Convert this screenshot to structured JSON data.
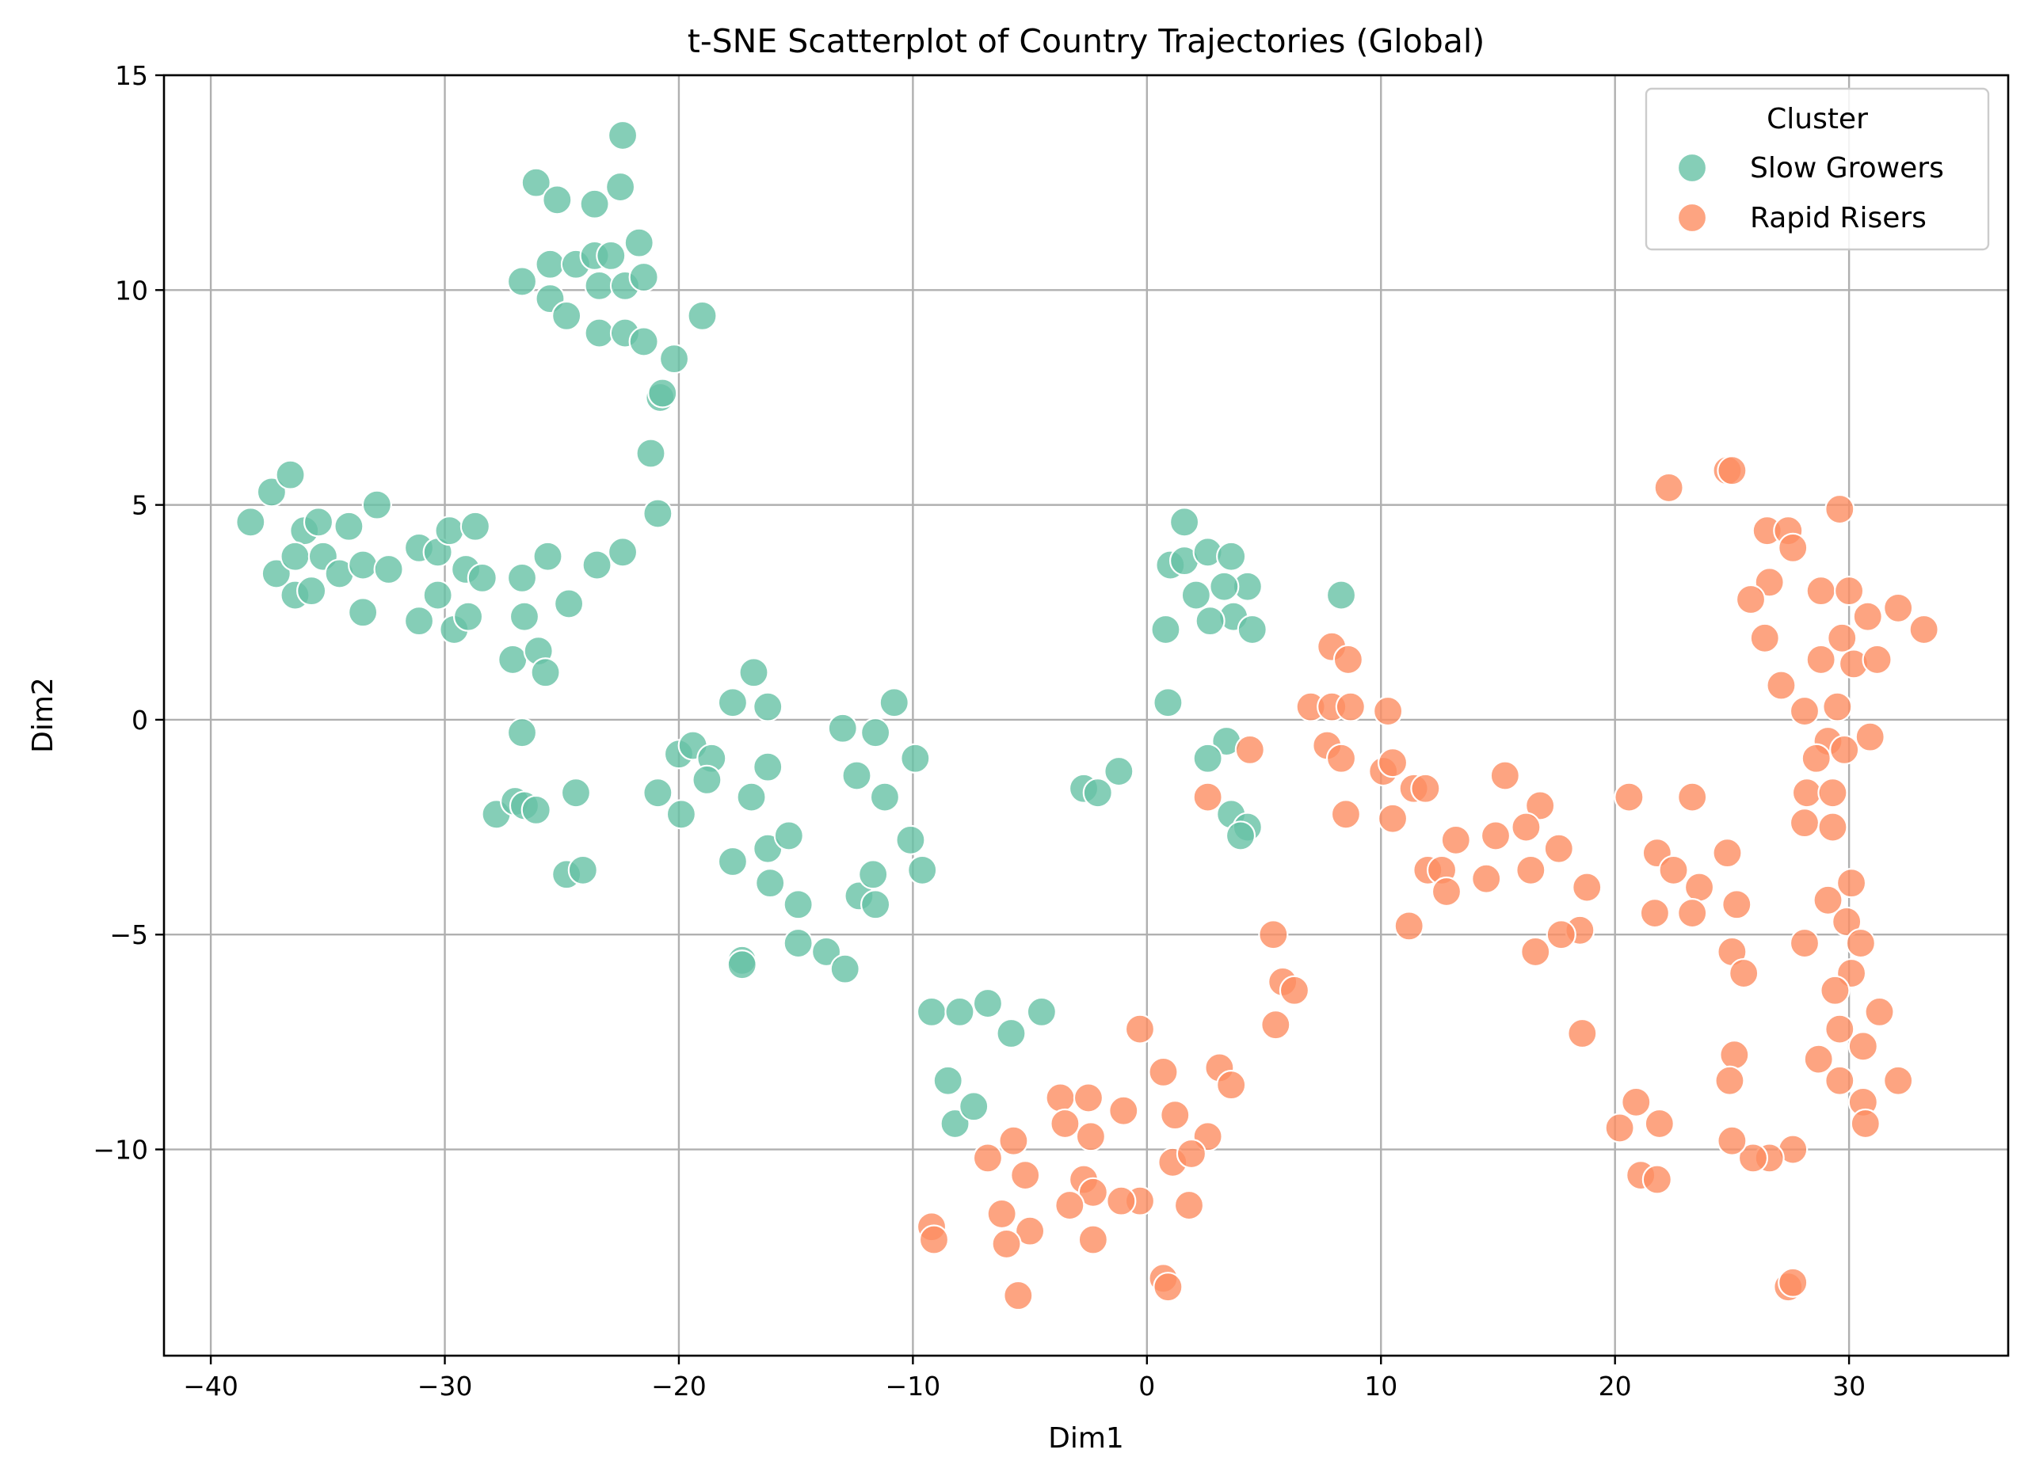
{
  "chart_data": {
    "type": "scatter",
    "title": "t-SNE Scatterplot of Country Trajectories (Global)",
    "xlabel": "Dim1",
    "ylabel": "Dim2",
    "xlim": [
      -42,
      36.8
    ],
    "ylim": [
      -14.8,
      15
    ],
    "xticks": [
      -40,
      -30,
      -20,
      -10,
      0,
      10,
      20,
      30
    ],
    "yticks": [
      -10,
      -5,
      0,
      5,
      10,
      15
    ],
    "xtick_labels": [
      "−40",
      "−30",
      "−20",
      "−10",
      "0",
      "10",
      "20",
      "30"
    ],
    "ytick_labels": [
      "−10",
      "−5",
      "0",
      "5",
      "10",
      "15"
    ],
    "grid": true,
    "legend": {
      "title": "Cluster",
      "placement": "top-right"
    },
    "series": [
      {
        "name": "Slow Growers",
        "color": "#66c2a5",
        "points": [
          [
            -22.4,
            13.6
          ],
          [
            -26.1,
            12.5
          ],
          [
            -25.2,
            12.1
          ],
          [
            -23.6,
            12.0
          ],
          [
            -22.5,
            12.4
          ],
          [
            -26.7,
            10.2
          ],
          [
            -25.5,
            10.6
          ],
          [
            -24.4,
            10.6
          ],
          [
            -23.6,
            10.8
          ],
          [
            -22.9,
            10.8
          ],
          [
            -23.4,
            10.1
          ],
          [
            -22.3,
            10.1
          ],
          [
            -21.7,
            11.1
          ],
          [
            -21.5,
            10.3
          ],
          [
            -25.5,
            9.8
          ],
          [
            -24.8,
            9.4
          ],
          [
            -23.4,
            9.0
          ],
          [
            -22.3,
            9.0
          ],
          [
            -21.5,
            8.8
          ],
          [
            -20.2,
            8.4
          ],
          [
            -19.0,
            9.4
          ],
          [
            -20.8,
            7.5
          ],
          [
            -20.7,
            7.6
          ],
          [
            -21.2,
            6.2
          ],
          [
            -20.9,
            4.8
          ],
          [
            -38.3,
            4.6
          ],
          [
            -37.4,
            5.3
          ],
          [
            -36.6,
            5.7
          ],
          [
            -36.0,
            4.4
          ],
          [
            -35.4,
            4.6
          ],
          [
            -34.1,
            4.5
          ],
          [
            -32.9,
            5.0
          ],
          [
            -37.2,
            3.4
          ],
          [
            -36.4,
            2.9
          ],
          [
            -36.4,
            3.8
          ],
          [
            -35.7,
            3.0
          ],
          [
            -35.2,
            3.8
          ],
          [
            -34.5,
            3.4
          ],
          [
            -33.5,
            3.6
          ],
          [
            -33.5,
            2.5
          ],
          [
            -32.4,
            3.5
          ],
          [
            -31.1,
            4.0
          ],
          [
            -31.1,
            2.3
          ],
          [
            -30.3,
            3.9
          ],
          [
            -30.3,
            2.9
          ],
          [
            -29.8,
            4.4
          ],
          [
            -29.6,
            2.1
          ],
          [
            -29.1,
            3.5
          ],
          [
            -29.0,
            2.4
          ],
          [
            -28.7,
            4.5
          ],
          [
            -28.4,
            3.3
          ],
          [
            -26.7,
            3.3
          ],
          [
            -26.6,
            2.4
          ],
          [
            -25.6,
            3.8
          ],
          [
            -27.1,
            1.4
          ],
          [
            -26.0,
            1.6
          ],
          [
            -25.7,
            1.1
          ],
          [
            -24.7,
            2.7
          ],
          [
            -23.5,
            3.6
          ],
          [
            -22.4,
            3.9
          ],
          [
            -26.7,
            -0.3
          ],
          [
            -27.8,
            -2.2
          ],
          [
            -27.0,
            -1.9
          ],
          [
            -26.6,
            -2.0
          ],
          [
            -26.1,
            -2.1
          ],
          [
            -24.4,
            -1.7
          ],
          [
            -24.8,
            -3.6
          ],
          [
            -24.1,
            -3.5
          ],
          [
            -17.7,
            0.4
          ],
          [
            -16.8,
            1.1
          ],
          [
            -16.2,
            0.3
          ],
          [
            -20.0,
            -0.8
          ],
          [
            -19.4,
            -0.6
          ],
          [
            -18.6,
            -0.9
          ],
          [
            -18.8,
            -1.4
          ],
          [
            -16.9,
            -1.8
          ],
          [
            -16.2,
            -1.1
          ],
          [
            -20.9,
            -1.7
          ],
          [
            -19.9,
            -2.2
          ],
          [
            -16.2,
            -3.0
          ],
          [
            -17.7,
            -3.3
          ],
          [
            -16.1,
            -3.8
          ],
          [
            -15.3,
            -2.7
          ],
          [
            -14.9,
            -4.3
          ],
          [
            -14.9,
            -5.2
          ],
          [
            -13.7,
            -5.4
          ],
          [
            -17.3,
            -5.6
          ],
          [
            -17.3,
            -5.7
          ],
          [
            -13.0,
            -0.2
          ],
          [
            -11.6,
            -0.3
          ],
          [
            -10.8,
            0.4
          ],
          [
            -9.9,
            -0.9
          ],
          [
            -12.4,
            -1.3
          ],
          [
            -11.2,
            -1.8
          ],
          [
            -12.3,
            -4.1
          ],
          [
            -11.7,
            -3.6
          ],
          [
            -11.6,
            -4.3
          ],
          [
            -10.1,
            -2.8
          ],
          [
            -9.6,
            -3.5
          ],
          [
            -12.9,
            -5.8
          ],
          [
            -9.2,
            -6.8
          ],
          [
            -8.0,
            -6.8
          ],
          [
            -6.8,
            -6.6
          ],
          [
            -5.8,
            -7.3
          ],
          [
            -4.5,
            -6.8
          ],
          [
            -8.5,
            -8.4
          ],
          [
            -8.2,
            -9.4
          ],
          [
            -7.4,
            -9.0
          ],
          [
            -2.7,
            -1.6
          ],
          [
            -2.1,
            -1.7
          ],
          [
            -1.2,
            -1.2
          ],
          [
            1.6,
            4.6
          ],
          [
            1.0,
            3.6
          ],
          [
            1.6,
            3.7
          ],
          [
            2.6,
            3.9
          ],
          [
            3.6,
            3.8
          ],
          [
            4.3,
            3.1
          ],
          [
            3.3,
            3.1
          ],
          [
            2.1,
            2.9
          ],
          [
            3.7,
            2.4
          ],
          [
            2.7,
            2.3
          ],
          [
            4.5,
            2.1
          ],
          [
            0.8,
            2.1
          ],
          [
            0.9,
            0.4
          ],
          [
            8.3,
            2.9
          ],
          [
            3.4,
            -0.5
          ],
          [
            2.6,
            -0.9
          ],
          [
            3.6,
            -2.2
          ],
          [
            4.3,
            -2.5
          ],
          [
            4.0,
            -2.7
          ]
        ]
      },
      {
        "name": "Rapid Risers",
        "color": "#fc8d62",
        "points": [
          [
            22.3,
            5.4
          ],
          [
            24.8,
            5.8
          ],
          [
            25.0,
            5.8
          ],
          [
            29.6,
            4.9
          ],
          [
            26.5,
            4.4
          ],
          [
            27.4,
            4.4
          ],
          [
            27.6,
            4.0
          ],
          [
            26.6,
            3.2
          ],
          [
            25.8,
            2.8
          ],
          [
            28.8,
            3.0
          ],
          [
            30.0,
            3.0
          ],
          [
            32.1,
            2.6
          ],
          [
            30.8,
            2.4
          ],
          [
            33.2,
            2.1
          ],
          [
            26.4,
            1.9
          ],
          [
            29.7,
            1.9
          ],
          [
            28.8,
            1.4
          ],
          [
            30.2,
            1.3
          ],
          [
            31.2,
            1.4
          ],
          [
            27.1,
            0.8
          ],
          [
            28.1,
            0.2
          ],
          [
            29.5,
            0.3
          ],
          [
            30.9,
            -0.4
          ],
          [
            29.1,
            -0.5
          ],
          [
            29.8,
            -0.7
          ],
          [
            28.6,
            -0.9
          ],
          [
            28.2,
            -1.7
          ],
          [
            29.3,
            -1.7
          ],
          [
            28.1,
            -2.4
          ],
          [
            29.3,
            -2.5
          ],
          [
            30.1,
            -3.8
          ],
          [
            29.1,
            -4.2
          ],
          [
            29.9,
            -4.7
          ],
          [
            30.5,
            -5.2
          ],
          [
            28.1,
            -5.2
          ],
          [
            30.1,
            -5.9
          ],
          [
            29.4,
            -6.3
          ],
          [
            31.3,
            -6.8
          ],
          [
            29.6,
            -7.2
          ],
          [
            30.6,
            -7.6
          ],
          [
            28.7,
            -7.9
          ],
          [
            29.6,
            -8.4
          ],
          [
            30.6,
            -8.9
          ],
          [
            32.1,
            -8.4
          ],
          [
            30.7,
            -9.4
          ],
          [
            27.6,
            -10.0
          ],
          [
            26.6,
            -10.2
          ],
          [
            25.9,
            -10.2
          ],
          [
            25.0,
            -9.8
          ],
          [
            27.4,
            -13.2
          ],
          [
            27.6,
            -13.1
          ],
          [
            23.3,
            -1.8
          ],
          [
            20.6,
            -1.8
          ],
          [
            21.8,
            -3.1
          ],
          [
            22.5,
            -3.5
          ],
          [
            23.6,
            -3.9
          ],
          [
            24.8,
            -3.1
          ],
          [
            25.2,
            -4.3
          ],
          [
            21.7,
            -4.5
          ],
          [
            23.3,
            -4.5
          ],
          [
            25.0,
            -5.4
          ],
          [
            25.5,
            -5.9
          ],
          [
            25.1,
            -7.8
          ],
          [
            24.9,
            -8.4
          ],
          [
            20.9,
            -8.9
          ],
          [
            20.2,
            -9.5
          ],
          [
            21.9,
            -9.4
          ],
          [
            21.1,
            -10.6
          ],
          [
            21.8,
            -10.7
          ],
          [
            15.3,
            -1.3
          ],
          [
            16.8,
            -2.0
          ],
          [
            16.2,
            -2.5
          ],
          [
            14.9,
            -2.7
          ],
          [
            13.2,
            -2.8
          ],
          [
            17.6,
            -3.0
          ],
          [
            16.4,
            -3.5
          ],
          [
            14.5,
            -3.7
          ],
          [
            12.0,
            -3.5
          ],
          [
            12.6,
            -3.5
          ],
          [
            12.8,
            -4.0
          ],
          [
            11.2,
            -4.8
          ],
          [
            18.8,
            -3.9
          ],
          [
            18.5,
            -4.9
          ],
          [
            17.7,
            -5.0
          ],
          [
            16.6,
            -5.4
          ],
          [
            18.6,
            -7.3
          ],
          [
            10.1,
            -1.2
          ],
          [
            10.5,
            -1.0
          ],
          [
            11.4,
            -1.6
          ],
          [
            11.9,
            -1.6
          ],
          [
            10.5,
            -2.3
          ],
          [
            7.9,
            1.7
          ],
          [
            8.6,
            1.4
          ],
          [
            7.0,
            0.3
          ],
          [
            7.9,
            0.3
          ],
          [
            8.7,
            0.3
          ],
          [
            10.3,
            0.2
          ],
          [
            7.7,
            -0.6
          ],
          [
            8.3,
            -0.9
          ],
          [
            8.5,
            -2.2
          ],
          [
            4.4,
            -0.7
          ],
          [
            2.6,
            -1.8
          ],
          [
            5.4,
            -5.0
          ],
          [
            5.8,
            -6.1
          ],
          [
            6.3,
            -6.3
          ],
          [
            5.5,
            -7.1
          ],
          [
            -0.3,
            -7.2
          ],
          [
            0.7,
            -8.2
          ],
          [
            3.1,
            -8.1
          ],
          [
            3.6,
            -8.5
          ],
          [
            -3.7,
            -8.8
          ],
          [
            -2.5,
            -8.8
          ],
          [
            -1.0,
            -9.1
          ],
          [
            -3.5,
            -9.4
          ],
          [
            -2.4,
            -9.7
          ],
          [
            1.2,
            -9.2
          ],
          [
            2.6,
            -9.7
          ],
          [
            -5.7,
            -9.8
          ],
          [
            -6.8,
            -10.2
          ],
          [
            -5.2,
            -10.6
          ],
          [
            -2.7,
            -10.7
          ],
          [
            -2.3,
            -11.0
          ],
          [
            -0.3,
            -11.2
          ],
          [
            -1.1,
            -11.2
          ],
          [
            1.1,
            -10.3
          ],
          [
            1.9,
            -10.1
          ],
          [
            -3.3,
            -11.3
          ],
          [
            -6.2,
            -11.5
          ],
          [
            -5.0,
            -11.9
          ],
          [
            -6.0,
            -12.2
          ],
          [
            -9.2,
            -11.8
          ],
          [
            -9.1,
            -12.1
          ],
          [
            -2.3,
            -12.1
          ],
          [
            1.8,
            -11.3
          ],
          [
            0.7,
            -13.0
          ],
          [
            0.9,
            -13.2
          ],
          [
            -5.5,
            -13.4
          ]
        ]
      }
    ]
  }
}
